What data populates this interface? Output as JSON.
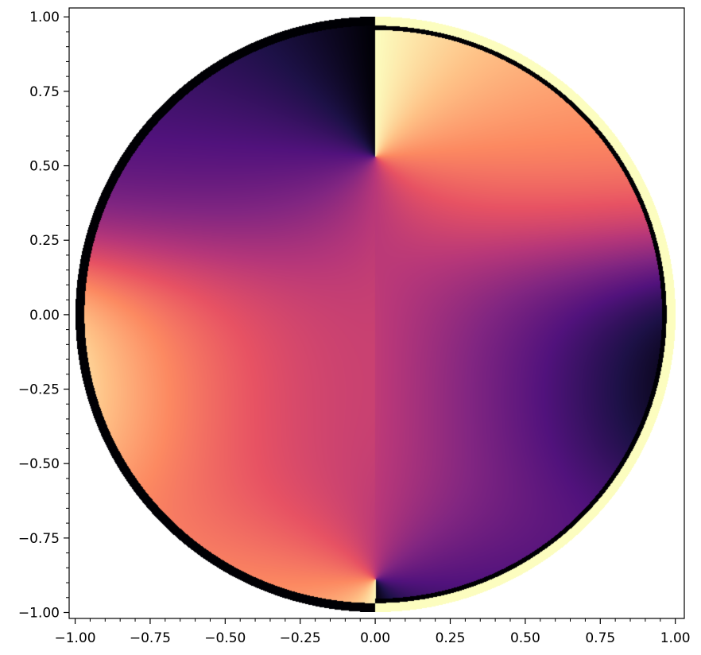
{
  "chart_data": {
    "type": "heatmap",
    "title": "",
    "xlabel": "",
    "ylabel": "",
    "xlim": [
      -1.02,
      1.03
    ],
    "ylim": [
      -1.02,
      1.03
    ],
    "xticks": [
      -1.0,
      -0.75,
      -0.5,
      -0.25,
      0.0,
      0.25,
      0.5,
      0.75,
      1.0
    ],
    "xtick_labels": [
      "−1.00",
      "−0.75",
      "−0.50",
      "−0.25",
      "0.00",
      "0.25",
      "0.50",
      "0.75",
      "1.00"
    ],
    "yticks": [
      1.0,
      0.75,
      0.5,
      0.25,
      0.0,
      -0.25,
      -0.5,
      -0.75,
      -1.0
    ],
    "ytick_labels": [
      "1.00",
      "0.75",
      "0.50",
      "0.25",
      "0.00",
      "−0.25",
      "−0.50",
      "−0.75",
      "−1.00"
    ],
    "minor_tick_step": 0.05,
    "colormap": "magma",
    "colormap_stops": [
      "#000004",
      "#1d1147",
      "#51127c",
      "#822681",
      "#b73779",
      "#e75263",
      "#fc8961",
      "#fec287",
      "#fcfdbf"
    ],
    "grid": false,
    "legend": "none",
    "field": {
      "description_shape": "disk of radius 1 centred at origin",
      "singular_point_upper": [
        0.0,
        0.53
      ],
      "singular_point_lower": [
        0.0,
        -0.89
      ],
      "branch_cut_x": 0.0
    }
  }
}
